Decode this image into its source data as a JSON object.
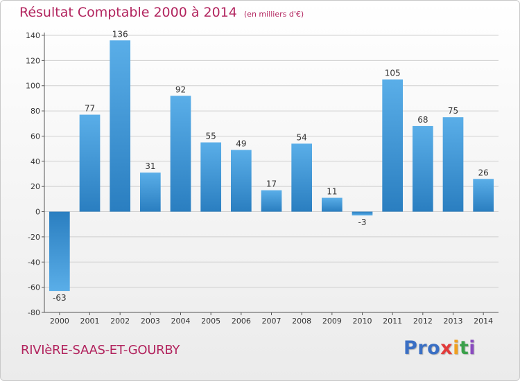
{
  "header": {
    "title": "Résultat Comptable 2000 à 2014",
    "subtitle": "(en milliers d'€)"
  },
  "footer": {
    "commune": "RIVIèRE-SAAS-ET-GOURBY",
    "brand": [
      "Pro",
      "x",
      "i",
      "t",
      "i"
    ]
  },
  "colors": {
    "title": "#b2245e",
    "bar_light": "#5aaee8",
    "bar_dark": "#2a7ec0",
    "axis": "#555555",
    "grid": "#cfcfcf"
  },
  "chart_data": {
    "type": "bar",
    "title": "Résultat Comptable 2000 à 2014",
    "subtitle": "(en milliers d'€)",
    "xlabel": "",
    "ylabel": "",
    "categories": [
      "2000",
      "2001",
      "2002",
      "2003",
      "2004",
      "2005",
      "2006",
      "2007",
      "2008",
      "2009",
      "2010",
      "2011",
      "2012",
      "2013",
      "2014"
    ],
    "values": [
      -63,
      77,
      136,
      31,
      92,
      55,
      49,
      17,
      54,
      11,
      -3,
      105,
      68,
      75,
      26
    ],
    "ylim": [
      -80,
      140
    ],
    "yticks": [
      140,
      120,
      100,
      80,
      60,
      40,
      20,
      0,
      -20,
      -40,
      -60,
      -80
    ],
    "grid": true,
    "legend": "none"
  }
}
